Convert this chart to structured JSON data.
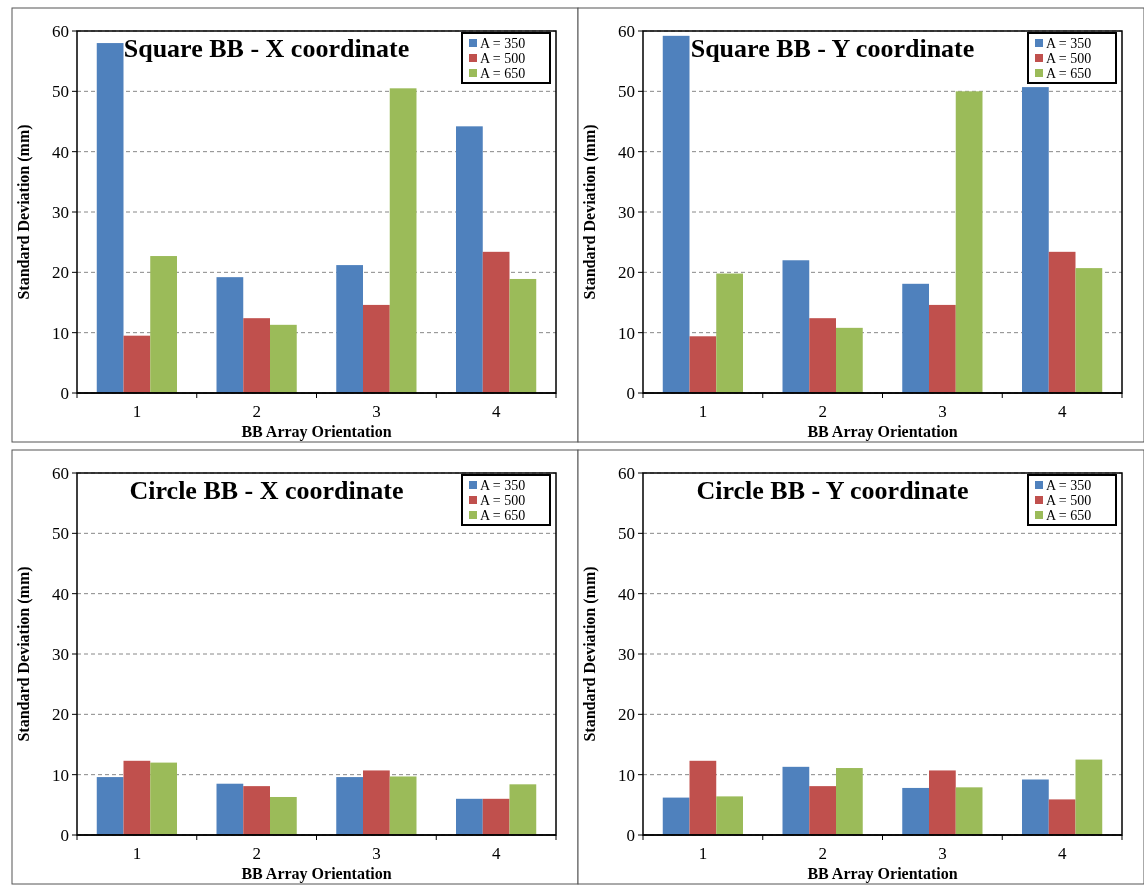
{
  "chart_data": [
    {
      "type": "bar",
      "title": "Square BB - X coordinate",
      "xlabel": "BB Array Orientation",
      "ylabel": "Standard Deviation (mm)",
      "categories": [
        "1",
        "2",
        "3",
        "4"
      ],
      "series": [
        {
          "name": "A = 350",
          "color": "#4f81bd",
          "values": [
            58,
            19.2,
            21.2,
            44.2
          ]
        },
        {
          "name": "A = 500",
          "color": "#c0504d",
          "values": [
            9.5,
            12.4,
            14.6,
            23.4
          ]
        },
        {
          "name": "A = 650",
          "color": "#9bbb59",
          "values": [
            22.7,
            11.3,
            50.5,
            18.9
          ]
        }
      ],
      "ylim": [
        0,
        60
      ],
      "yticks": [
        0,
        10,
        20,
        30,
        40,
        50,
        60
      ],
      "grid": "y",
      "legend": "top right"
    },
    {
      "type": "bar",
      "title": "Square BB - Y coordinate",
      "xlabel": "BB Array Orientation",
      "ylabel": "Standard Deviation (mm)",
      "categories": [
        "1",
        "2",
        "3",
        "4"
      ],
      "series": [
        {
          "name": "A = 350",
          "color": "#4f81bd",
          "values": [
            59.2,
            22,
            18.1,
            50.7
          ]
        },
        {
          "name": "A = 500",
          "color": "#c0504d",
          "values": [
            9.4,
            12.4,
            14.6,
            23.4
          ]
        },
        {
          "name": "A = 650",
          "color": "#9bbb59",
          "values": [
            19.8,
            10.8,
            50,
            20.7
          ]
        }
      ],
      "ylim": [
        0,
        60
      ],
      "yticks": [
        0,
        10,
        20,
        30,
        40,
        50,
        60
      ],
      "grid": "y",
      "legend": "top right"
    },
    {
      "type": "bar",
      "title": "Circle BB - X coordinate",
      "xlabel": "BB Array Orientation",
      "ylabel": "Standard Deviation (mm)",
      "categories": [
        "1",
        "2",
        "3",
        "4"
      ],
      "series": [
        {
          "name": "A = 350",
          "color": "#4f81bd",
          "values": [
            9.6,
            8.5,
            9.6,
            6.0
          ]
        },
        {
          "name": "A = 500",
          "color": "#c0504d",
          "values": [
            12.3,
            8.1,
            10.7,
            6.0
          ]
        },
        {
          "name": "A = 650",
          "color": "#9bbb59",
          "values": [
            12.0,
            6.3,
            9.7,
            8.4
          ]
        }
      ],
      "ylim": [
        0,
        60
      ],
      "yticks": [
        0,
        10,
        20,
        30,
        40,
        50,
        60
      ],
      "grid": "y",
      "legend": "top right"
    },
    {
      "type": "bar",
      "title": "Circle BB - Y coordinate",
      "xlabel": "BB Array Orientation",
      "ylabel": "Standard Deviation (mm)",
      "categories": [
        "1",
        "2",
        "3",
        "4"
      ],
      "series": [
        {
          "name": "A = 350",
          "color": "#4f81bd",
          "values": [
            6.2,
            11.3,
            7.8,
            9.2
          ]
        },
        {
          "name": "A = 500",
          "color": "#c0504d",
          "values": [
            12.3,
            8.1,
            10.7,
            5.9
          ]
        },
        {
          "name": "A = 650",
          "color": "#9bbb59",
          "values": [
            6.4,
            11.1,
            7.9,
            12.5
          ]
        }
      ],
      "ylim": [
        0,
        60
      ],
      "yticks": [
        0,
        10,
        20,
        30,
        40,
        50,
        60
      ],
      "grid": "y",
      "legend": "top right"
    }
  ]
}
